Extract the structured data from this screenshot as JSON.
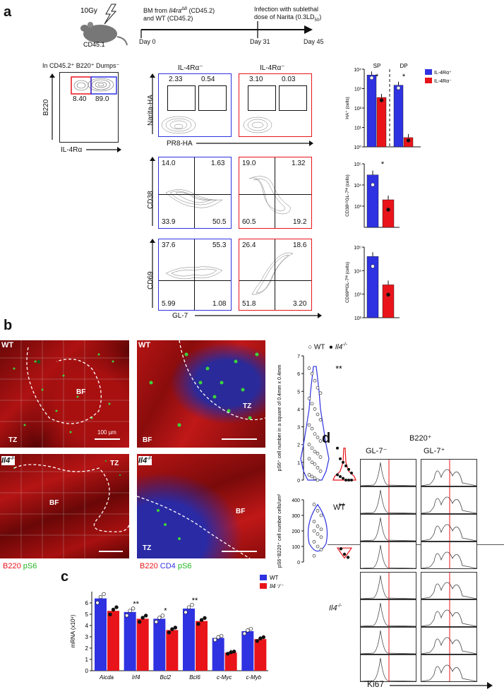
{
  "panels": {
    "a": "a",
    "b": "b",
    "c": "c",
    "d": "d"
  },
  "panel_a": {
    "irradiation": "10Gy",
    "mouse": "CD45.1",
    "bm_line1_pre": "BM from ",
    "bm_gene": "Il4ra",
    "bm_sup": "ΔB",
    "bm_line1_post": " (CD45.2)",
    "bm_line2": "and WT (CD45.2)",
    "infection_line1": "Infection with sublethal",
    "infection_line2": "dose of Narita (0.3LD",
    "infection_sub": "50",
    "infection_close": ")",
    "day0": "Day 0",
    "day31": "Day 31",
    "day45": "Day 45",
    "gating_title": "In CD45.2⁺ B220⁺ Dumps⁻",
    "gating_y": "B220",
    "gating_x": "IL-4Rα",
    "gating_vals": [
      "8.40",
      "89.0"
    ],
    "col1_header": "IL-4Rα⁻",
    "col2_header": "IL-4Rα⁻",
    "row1_y": "Narita-HA",
    "row1_x": "PR8-HA",
    "row1_left": [
      "2.33",
      "0.54"
    ],
    "row1_right": [
      "3.10",
      "0.03"
    ],
    "row2_y": "CD38",
    "row2_left": [
      "14.0",
      "1.63",
      "33.9",
      "50.5"
    ],
    "row2_right": [
      "19.0",
      "1.32",
      "60.5",
      "19.2"
    ],
    "row3_y": "CD69",
    "row3_x": "GL-7",
    "row3_left": [
      "37.6",
      "55.3",
      "5.99",
      "1.08"
    ],
    "row3_right": [
      "26.4",
      "18.6",
      "51.8",
      "3.20"
    ]
  },
  "chart_data": [
    {
      "type": "bar",
      "categories": [
        "SP",
        "DP"
      ],
      "series": [
        {
          "name": "IL-4Rα⁺",
          "values": [
            5000,
            1500
          ]
        },
        {
          "name": "IL-4Rα⁻",
          "values": [
            350,
            3
          ]
        }
      ],
      "ylabel": "HA⁺ (cells)",
      "yscale": "log",
      "ylim": [
        1,
        10000
      ],
      "ticks": [
        "10⁰",
        "10¹",
        "10²",
        "10³",
        "10⁴"
      ],
      "annotations": [
        "*",
        "*"
      ],
      "legend": [
        "IL-4Rα⁺",
        "IL-4Rα⁻"
      ]
    },
    {
      "type": "bar",
      "categories": [
        "IL-4Rα⁺",
        "IL-4Rα⁻"
      ],
      "values": [
        30000,
        2000
      ],
      "ylabel": "CD38ᴸᴼGL-7ᴴᴵ (cells)",
      "yscale": "log",
      "ylim": [
        100,
        100000
      ],
      "ticks": [
        "10³",
        "10⁴",
        "10⁵"
      ],
      "annotations": [
        "*"
      ]
    },
    {
      "type": "bar",
      "categories": [
        "IL-4Rα⁺",
        "IL-4Rα⁻"
      ],
      "values": [
        40000,
        2500
      ],
      "ylabel": "CD69ᴴᴵGL-7ᴴᴵ (cells)",
      "yscale": "log",
      "ylim": [
        100,
        100000
      ],
      "ticks": [
        "10²",
        "10³",
        "10⁴",
        "10⁵"
      ]
    },
    {
      "type": "scatter",
      "categories": [
        "WT",
        "Il4⁻/⁻"
      ],
      "ylabel": "pS6⁺ cell number in a square of 0.4mm x 0.4mm",
      "ylim": [
        0,
        7
      ],
      "ticks": [
        "0",
        "1",
        "2",
        "3",
        "4",
        "5",
        "6",
        "7"
      ],
      "annotations": [
        "**"
      ],
      "legend": [
        "WT",
        "Il4⁻/⁻"
      ]
    },
    {
      "type": "scatter",
      "categories": [
        "WT",
        "Il4⁻/⁻"
      ],
      "ylabel": "pS6⁺B220⁺ cell number cells/um²",
      "ylim": [
        0,
        400
      ],
      "ticks": [
        "0",
        "100",
        "200",
        "300",
        "400"
      ],
      "annotations": [
        "**"
      ]
    },
    {
      "type": "bar",
      "categories": [
        "Aicda",
        "Irf4",
        "Bcl2",
        "Bcl6",
        "c-Myc",
        "c-Myb"
      ],
      "series": [
        {
          "name": "WT",
          "values": [
            6.4,
            5.2,
            4.6,
            5.5,
            2.9,
            3.5
          ]
        },
        {
          "name": "Il4⁻/⁻",
          "values": [
            5.3,
            4.6,
            3.6,
            4.4,
            1.6,
            2.8
          ]
        }
      ],
      "ylabel": "mRNA (x10⁶)",
      "ylim": [
        0,
        7
      ],
      "ticks": [
        "0",
        "1",
        "2",
        "3",
        "4",
        "5",
        "6"
      ],
      "annotations": [
        "**",
        "*",
        "**"
      ],
      "legend": [
        "WT",
        "Il4⁻/⁻"
      ]
    }
  ],
  "panel_b": {
    "wt": "WT",
    "il4": "Il4",
    "il4_sup": "-/-",
    "bf": "BF",
    "tz": "TZ",
    "scale": "100 µm",
    "legend_left": [
      "B220",
      "pS6"
    ],
    "legend_right": [
      "B220",
      "CD4",
      "pS6"
    ],
    "violin_legend_wt": "WT",
    "violin_legend_ko": "Il4",
    "violin_legend_ko_sup": "-/-"
  },
  "panel_d": {
    "title": "B220⁺",
    "col1": "GL-7⁻",
    "col2": "GL-7⁺",
    "wt": "WT",
    "ko": "Il4",
    "ko_sup": "-/-",
    "xlabel": "Ki67"
  },
  "colors": {
    "blue": "#2f32e0",
    "red": "#e8141a",
    "green": "#33cc33"
  }
}
